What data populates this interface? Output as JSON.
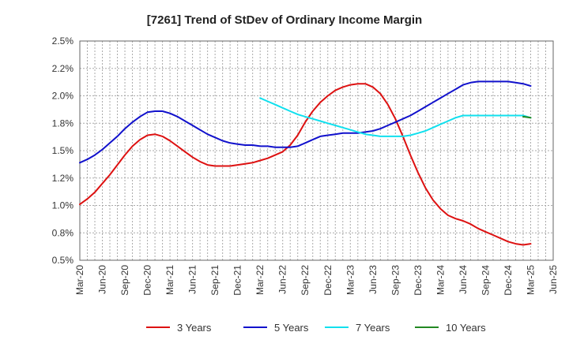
{
  "chart_data": {
    "type": "line",
    "title": "[7261]  Trend of StDev of Ordinary Income Margin",
    "xlabel": "",
    "ylabel": "",
    "ylim": [
      0.5,
      2.5
    ],
    "x_ticks": [
      "Mar-20",
      "Jun-20",
      "Sep-20",
      "Dec-20",
      "Mar-21",
      "Jun-21",
      "Sep-21",
      "Dec-21",
      "Mar-22",
      "Jun-22",
      "Sep-22",
      "Dec-22",
      "Mar-23",
      "Jun-23",
      "Sep-23",
      "Dec-23",
      "Mar-24",
      "Jun-24",
      "Sep-24",
      "Dec-24",
      "Mar-25",
      "Jun-25"
    ],
    "y_ticks": [
      {
        "value": 0.5,
        "label": "0.5%"
      },
      {
        "value": 0.75,
        "label": "0.8%"
      },
      {
        "value": 1.0,
        "label": "1.0%"
      },
      {
        "value": 1.25,
        "label": "1.2%"
      },
      {
        "value": 1.5,
        "label": "1.5%"
      },
      {
        "value": 1.75,
        "label": "1.8%"
      },
      {
        "value": 2.0,
        "label": "2.0%"
      },
      {
        "value": 2.25,
        "label": "2.2%"
      },
      {
        "value": 2.5,
        "label": "2.5%"
      }
    ],
    "grid": true,
    "legend_position": "bottom",
    "series": [
      {
        "name": "3 Years",
        "color": "#dd1111",
        "points": [
          [
            "Mar-20",
            1.01
          ],
          [
            "Apr-20",
            1.06
          ],
          [
            "May-20",
            1.12
          ],
          [
            "Jun-20",
            1.2
          ],
          [
            "Jul-20",
            1.28
          ],
          [
            "Aug-20",
            1.37
          ],
          [
            "Sep-20",
            1.46
          ],
          [
            "Oct-20",
            1.54
          ],
          [
            "Nov-20",
            1.6
          ],
          [
            "Dec-20",
            1.64
          ],
          [
            "Jan-21",
            1.65
          ],
          [
            "Feb-21",
            1.63
          ],
          [
            "Mar-21",
            1.59
          ],
          [
            "Apr-21",
            1.54
          ],
          [
            "May-21",
            1.49
          ],
          [
            "Jun-21",
            1.44
          ],
          [
            "Jul-21",
            1.4
          ],
          [
            "Aug-21",
            1.37
          ],
          [
            "Sep-21",
            1.36
          ],
          [
            "Oct-21",
            1.36
          ],
          [
            "Nov-21",
            1.36
          ],
          [
            "Dec-21",
            1.37
          ],
          [
            "Jan-22",
            1.38
          ],
          [
            "Feb-22",
            1.39
          ],
          [
            "Mar-22",
            1.41
          ],
          [
            "Apr-22",
            1.43
          ],
          [
            "May-22",
            1.46
          ],
          [
            "Jun-22",
            1.49
          ],
          [
            "Jul-22",
            1.55
          ],
          [
            "Aug-22",
            1.64
          ],
          [
            "Sep-22",
            1.76
          ],
          [
            "Oct-22",
            1.86
          ],
          [
            "Nov-22",
            1.94
          ],
          [
            "Dec-22",
            2.0
          ],
          [
            "Jan-23",
            2.05
          ],
          [
            "Feb-23",
            2.08
          ],
          [
            "Mar-23",
            2.1
          ],
          [
            "Apr-23",
            2.11
          ],
          [
            "May-23",
            2.11
          ],
          [
            "Jun-23",
            2.08
          ],
          [
            "Jul-23",
            2.02
          ],
          [
            "Aug-23",
            1.92
          ],
          [
            "Sep-23",
            1.79
          ],
          [
            "Oct-23",
            1.63
          ],
          [
            "Nov-23",
            1.46
          ],
          [
            "Dec-23",
            1.3
          ],
          [
            "Jan-24",
            1.16
          ],
          [
            "Feb-24",
            1.05
          ],
          [
            "Mar-24",
            0.97
          ],
          [
            "Apr-24",
            0.91
          ],
          [
            "May-24",
            0.88
          ],
          [
            "Jun-24",
            0.86
          ],
          [
            "Jul-24",
            0.83
          ],
          [
            "Aug-24",
            0.79
          ],
          [
            "Sep-24",
            0.76
          ],
          [
            "Oct-24",
            0.73
          ],
          [
            "Nov-24",
            0.7
          ],
          [
            "Dec-24",
            0.67
          ],
          [
            "Jan-25",
            0.65
          ],
          [
            "Feb-25",
            0.64
          ],
          [
            "Mar-25",
            0.65
          ]
        ]
      },
      {
        "name": "5 Years",
        "color": "#1111cc",
        "points": [
          [
            "Mar-20",
            1.39
          ],
          [
            "Apr-20",
            1.42
          ],
          [
            "May-20",
            1.46
          ],
          [
            "Jun-20",
            1.51
          ],
          [
            "Jul-20",
            1.57
          ],
          [
            "Aug-20",
            1.63
          ],
          [
            "Sep-20",
            1.7
          ],
          [
            "Oct-20",
            1.76
          ],
          [
            "Nov-20",
            1.81
          ],
          [
            "Dec-20",
            1.85
          ],
          [
            "Jan-21",
            1.86
          ],
          [
            "Feb-21",
            1.86
          ],
          [
            "Mar-21",
            1.84
          ],
          [
            "Apr-21",
            1.81
          ],
          [
            "May-21",
            1.77
          ],
          [
            "Jun-21",
            1.73
          ],
          [
            "Jul-21",
            1.69
          ],
          [
            "Aug-21",
            1.65
          ],
          [
            "Sep-21",
            1.62
          ],
          [
            "Oct-21",
            1.59
          ],
          [
            "Nov-21",
            1.57
          ],
          [
            "Dec-21",
            1.56
          ],
          [
            "Jan-22",
            1.55
          ],
          [
            "Feb-22",
            1.55
          ],
          [
            "Mar-22",
            1.54
          ],
          [
            "Apr-22",
            1.54
          ],
          [
            "May-22",
            1.53
          ],
          [
            "Jun-22",
            1.53
          ],
          [
            "Jul-22",
            1.53
          ],
          [
            "Aug-22",
            1.54
          ],
          [
            "Sep-22",
            1.57
          ],
          [
            "Oct-22",
            1.6
          ],
          [
            "Nov-22",
            1.63
          ],
          [
            "Dec-22",
            1.64
          ],
          [
            "Jan-23",
            1.65
          ],
          [
            "Feb-23",
            1.66
          ],
          [
            "Mar-23",
            1.66
          ],
          [
            "Apr-23",
            1.66
          ],
          [
            "May-23",
            1.67
          ],
          [
            "Jun-23",
            1.68
          ],
          [
            "Jul-23",
            1.7
          ],
          [
            "Aug-23",
            1.73
          ],
          [
            "Sep-23",
            1.76
          ],
          [
            "Oct-23",
            1.79
          ],
          [
            "Nov-23",
            1.82
          ],
          [
            "Dec-23",
            1.86
          ],
          [
            "Jan-24",
            1.9
          ],
          [
            "Feb-24",
            1.94
          ],
          [
            "Mar-24",
            1.98
          ],
          [
            "Apr-24",
            2.02
          ],
          [
            "May-24",
            2.06
          ],
          [
            "Jun-24",
            2.1
          ],
          [
            "Jul-24",
            2.12
          ],
          [
            "Aug-24",
            2.13
          ],
          [
            "Sep-24",
            2.13
          ],
          [
            "Oct-24",
            2.13
          ],
          [
            "Nov-24",
            2.13
          ],
          [
            "Dec-24",
            2.13
          ],
          [
            "Jan-25",
            2.12
          ],
          [
            "Feb-25",
            2.11
          ],
          [
            "Mar-25",
            2.09
          ]
        ]
      },
      {
        "name": "7 Years",
        "color": "#11e0ee",
        "points": [
          [
            "Mar-22",
            1.98
          ],
          [
            "Apr-22",
            1.95
          ],
          [
            "May-22",
            1.92
          ],
          [
            "Jun-22",
            1.89
          ],
          [
            "Jul-22",
            1.86
          ],
          [
            "Aug-22",
            1.83
          ],
          [
            "Sep-22",
            1.81
          ],
          [
            "Oct-22",
            1.79
          ],
          [
            "Nov-22",
            1.77
          ],
          [
            "Dec-22",
            1.75
          ],
          [
            "Jan-23",
            1.73
          ],
          [
            "Feb-23",
            1.71
          ],
          [
            "Mar-23",
            1.69
          ],
          [
            "Apr-23",
            1.67
          ],
          [
            "May-23",
            1.65
          ],
          [
            "Jun-23",
            1.64
          ],
          [
            "Jul-23",
            1.63
          ],
          [
            "Aug-23",
            1.63
          ],
          [
            "Sep-23",
            1.63
          ],
          [
            "Oct-23",
            1.63
          ],
          [
            "Nov-23",
            1.64
          ],
          [
            "Dec-23",
            1.66
          ],
          [
            "Jan-24",
            1.68
          ],
          [
            "Feb-24",
            1.71
          ],
          [
            "Mar-24",
            1.74
          ],
          [
            "Apr-24",
            1.77
          ],
          [
            "May-24",
            1.8
          ],
          [
            "Jun-24",
            1.82
          ],
          [
            "Jul-24",
            1.82
          ],
          [
            "Aug-24",
            1.82
          ],
          [
            "Sep-24",
            1.82
          ],
          [
            "Oct-24",
            1.82
          ],
          [
            "Nov-24",
            1.82
          ],
          [
            "Dec-24",
            1.82
          ],
          [
            "Jan-25",
            1.82
          ],
          [
            "Feb-25",
            1.82
          ],
          [
            "Mar-25",
            1.8
          ]
        ]
      },
      {
        "name": "10 Years",
        "color": "#228822",
        "points": [
          [
            "Feb-25",
            1.81
          ],
          [
            "Mar-25",
            1.8
          ]
        ]
      }
    ]
  }
}
